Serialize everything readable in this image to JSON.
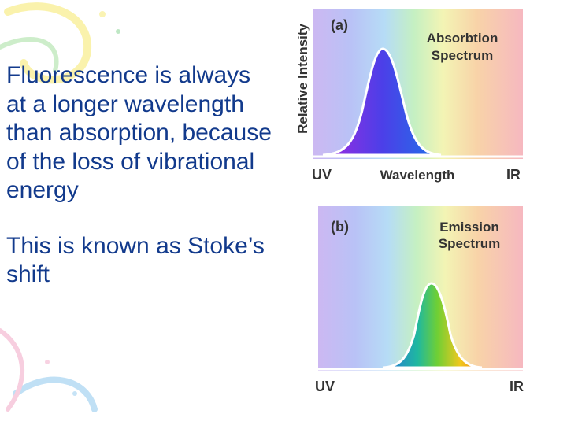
{
  "slide": {
    "paragraphs": [
      "Fluorescence is always at a longer wavelength than absorption, because of the loss of vibrational energy",
      "This is known as Stoke’s shift"
    ]
  },
  "figure": {
    "panel_a": {
      "tag": "(a)",
      "title_line1": "Absorbtion",
      "title_line2": "Spectrum",
      "y_axis_label": "Relative Intensity",
      "x_left": "UV",
      "x_center": "Wavelength",
      "x_right": "IR"
    },
    "panel_b": {
      "tag": "(b)",
      "title_line1": "Emission",
      "title_line2": "Spectrum",
      "x_left": "UV",
      "x_right": "IR"
    }
  },
  "colors": {
    "text": "#123a8c",
    "labels": "#333333",
    "decor_yellow": "#f6e96a",
    "decor_green": "#7fd08a",
    "decor_blue": "#8ec8ee",
    "decor_pink": "#f2a7c6"
  }
}
